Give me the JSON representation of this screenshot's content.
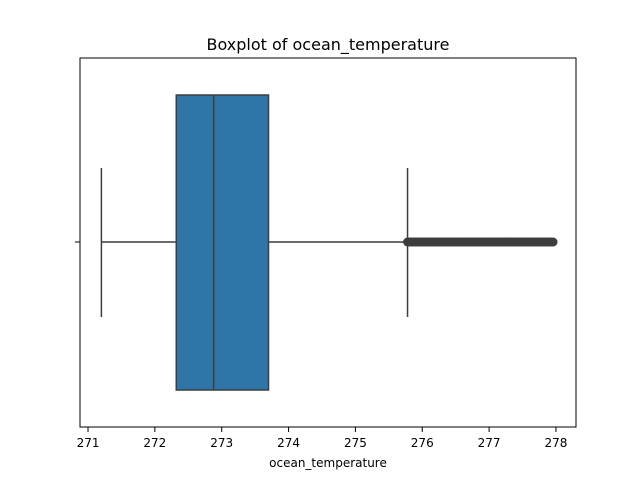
{
  "chart_data": {
    "type": "boxplot",
    "title": "Boxplot of ocean_temperature",
    "xlabel": "ocean_temperature",
    "ylabel": "",
    "xlim": [
      270.88,
      278.3
    ],
    "x_ticks": [
      271,
      272,
      273,
      274,
      275,
      276,
      277,
      278
    ],
    "orientation": "horizontal",
    "grid": false,
    "box": {
      "whisker_low": 271.2,
      "q1": 272.32,
      "median": 272.88,
      "q3": 273.7,
      "whisker_high": 275.78,
      "outliers_min": 275.78,
      "outliers_max": 277.97
    },
    "colors": {
      "box_fill": "#2e75a8",
      "line": "#3d3d3d",
      "outlier": "#3d3d3d"
    }
  }
}
